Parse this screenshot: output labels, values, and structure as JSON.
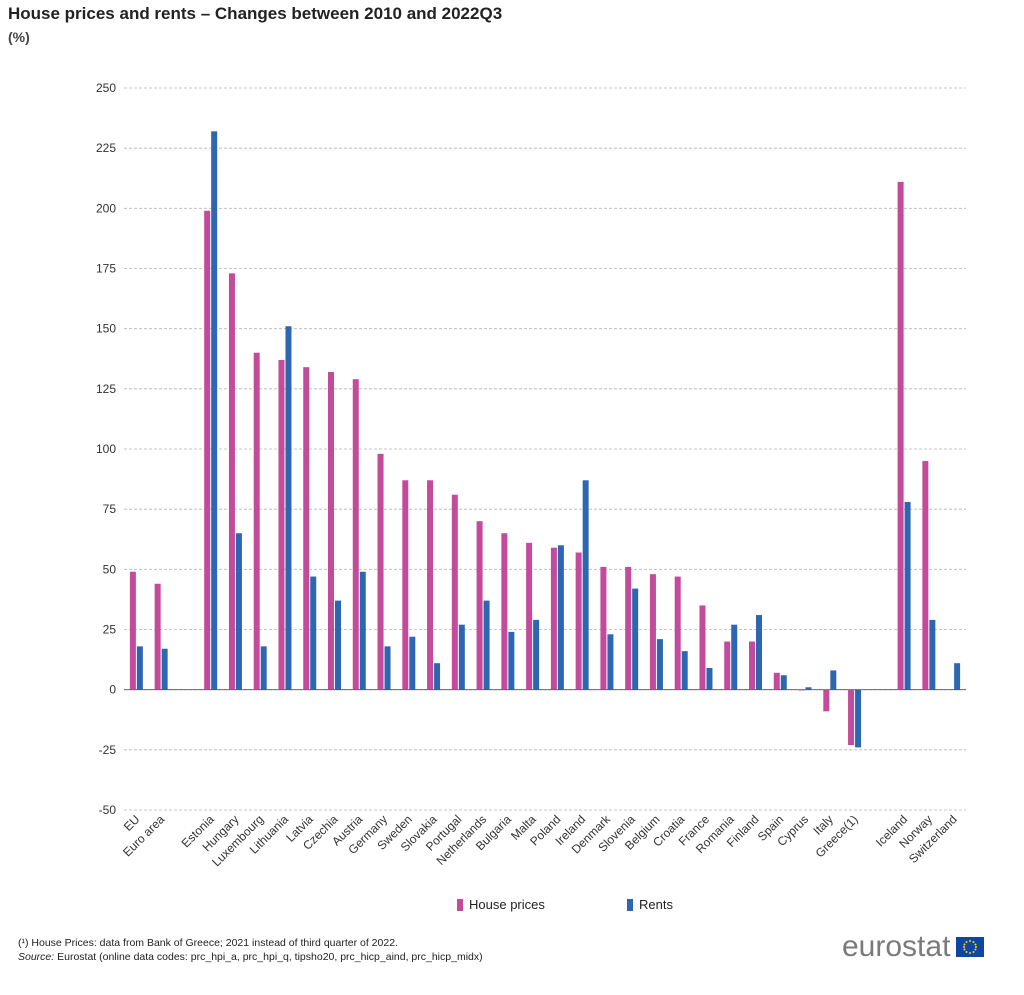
{
  "header": {
    "title": "House prices and rents – Changes between 2010 and 2022Q3",
    "unit": "(%)"
  },
  "chart_data": {
    "type": "bar",
    "title": "House prices and rents – Changes between 2010 and 2022Q3",
    "ylabel": "(%)",
    "xlabel": "",
    "ylim": [
      -50,
      250
    ],
    "yticks": [
      -50,
      -25,
      0,
      25,
      50,
      75,
      100,
      125,
      150,
      175,
      200,
      225,
      250
    ],
    "grid": true,
    "categories": [
      "EU",
      "Euro area",
      "",
      "Estonia",
      "Hungary",
      "Luxembourg",
      "Lithuania",
      "Latvia",
      "Czechia",
      "Austria",
      "Germany",
      "Sweden",
      "Slovakia",
      "Portugal",
      "Netherlands",
      "Bulgaria",
      "Malta",
      "Poland",
      "Ireland",
      "Denmark",
      "Slovenia",
      "Belgium",
      "Croatia",
      "France",
      "Romania",
      "Finland",
      "Spain",
      "Cyprus",
      "Italy",
      "Greece(1)",
      "",
      "Iceland",
      "Norway",
      "Switzerland"
    ],
    "series": [
      {
        "name": "House prices",
        "color": "#c44a9c",
        "values": [
          49,
          44,
          null,
          199,
          173,
          140,
          137,
          134,
          132,
          129,
          98,
          87,
          87,
          81,
          70,
          65,
          61,
          59,
          57,
          51,
          51,
          48,
          47,
          35,
          20,
          20,
          7,
          0,
          -9,
          -23,
          null,
          211,
          95,
          null
        ]
      },
      {
        "name": "Rents",
        "color": "#2e67b1",
        "values": [
          18,
          17,
          null,
          232,
          65,
          18,
          151,
          47,
          37,
          49,
          18,
          22,
          11,
          27,
          37,
          24,
          29,
          60,
          87,
          23,
          42,
          21,
          16,
          9,
          27,
          31,
          6,
          1,
          8,
          -24,
          null,
          78,
          29,
          11
        ]
      }
    ],
    "legend": [
      "House prices",
      "Rents"
    ],
    "legend_position": "bottom-center"
  },
  "footnote": {
    "note": "(¹) House Prices: data from Bank of Greece; 2021 instead of third quarter of 2022.",
    "source_label": "Source:",
    "source_text": " Eurostat (online data codes: prc_hpi_a, prc_hpi_q, tipsho20, prc_hicp_aind, prc_hicp_midx)"
  },
  "logo": {
    "text": "eurostat",
    "flag_color": "#0e47a1"
  }
}
